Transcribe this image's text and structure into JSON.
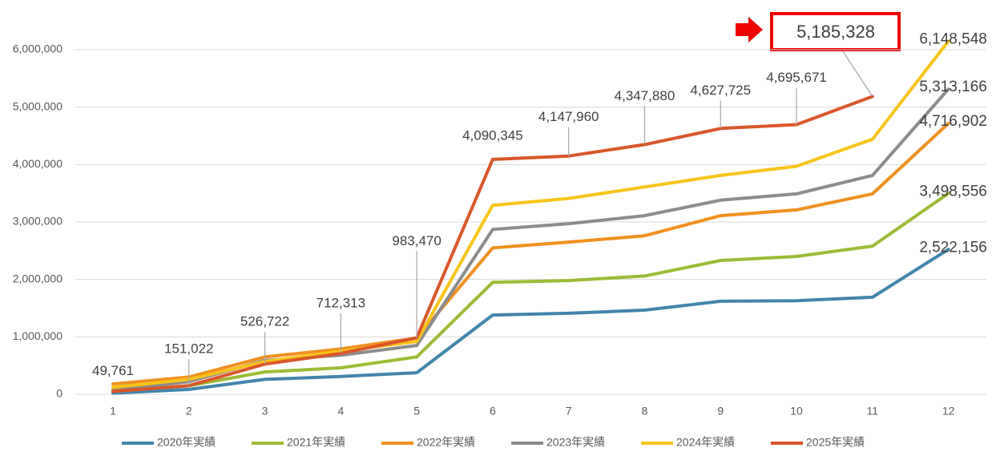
{
  "chart_data": {
    "type": "line",
    "categories": [
      "1",
      "2",
      "3",
      "4",
      "5",
      "6",
      "7",
      "8",
      "9",
      "10",
      "11",
      "12"
    ],
    "ylim": [
      0,
      6000000
    ],
    "yticks": [
      0,
      {
        "value": 1000000,
        "label": "1,000,000"
      },
      {
        "value": 2000000,
        "label": "2,000,000"
      },
      {
        "value": 3000000,
        "label": "3,000,000"
      },
      {
        "value": 4000000,
        "label": "4,000,000"
      },
      {
        "value": 5000000,
        "label": "5,000,000"
      },
      {
        "value": 6000000,
        "label": "6,000,000"
      }
    ],
    "grid": true,
    "legend": "bottom",
    "series": [
      {
        "name": "2020年実績",
        "color": "#4285ad",
        "values": [
          20000,
          85000,
          260000,
          310000,
          375000,
          1380000,
          1410000,
          1465000,
          1620000,
          1630000,
          1690000,
          2522156
        ],
        "value_labels": [
          null,
          null,
          null,
          null,
          null,
          null,
          null,
          null,
          null,
          null,
          null,
          "2,522,156"
        ]
      },
      {
        "name": "2021年実績",
        "color": "#9cbb36",
        "values": [
          50000,
          150000,
          390000,
          460000,
          650000,
          1950000,
          1980000,
          2060000,
          2330000,
          2400000,
          2580000,
          3498556
        ],
        "value_labels": [
          null,
          null,
          null,
          null,
          null,
          null,
          null,
          null,
          null,
          null,
          null,
          "3,498,556"
        ]
      },
      {
        "name": "2022年実績",
        "color": "#f0901f",
        "values": [
          180000,
          300000,
          650000,
          790000,
          980000,
          2550000,
          2650000,
          2760000,
          3110000,
          3210000,
          3490000,
          4716902
        ],
        "value_labels": [
          null,
          null,
          null,
          null,
          null,
          null,
          null,
          null,
          null,
          null,
          null,
          "4,716,902"
        ]
      },
      {
        "name": "2023年実績",
        "color": "#8c8c8c",
        "values": [
          80000,
          220000,
          590000,
          680000,
          850000,
          2870000,
          2970000,
          3110000,
          3380000,
          3490000,
          3810000,
          5313166
        ],
        "value_labels": [
          null,
          null,
          null,
          null,
          null,
          null,
          null,
          null,
          null,
          null,
          null,
          "5,313,166"
        ]
      },
      {
        "name": "2024年実績",
        "color": "#f7c41a",
        "values": [
          120000,
          260000,
          570000,
          750000,
          920000,
          3290000,
          3410000,
          3610000,
          3810000,
          3970000,
          4440000,
          6148548
        ],
        "value_labels": [
          null,
          null,
          null,
          null,
          null,
          null,
          null,
          null,
          null,
          null,
          null,
          "6,148,548"
        ]
      },
      {
        "name": "2025年実績",
        "color": "#d9562b",
        "values": [
          49761,
          151022,
          526722,
          712313,
          983470,
          4090345,
          4147960,
          4347880,
          4627725,
          4695671,
          5185328,
          null
        ],
        "value_labels": [
          "49,761",
          "151,022",
          "526,722",
          "712,313",
          "983,470",
          "4,090,345",
          "4,147,960",
          "4,347,880",
          "4,627,725",
          "4,695,671",
          "5,185,328",
          null
        ]
      }
    ]
  }
}
